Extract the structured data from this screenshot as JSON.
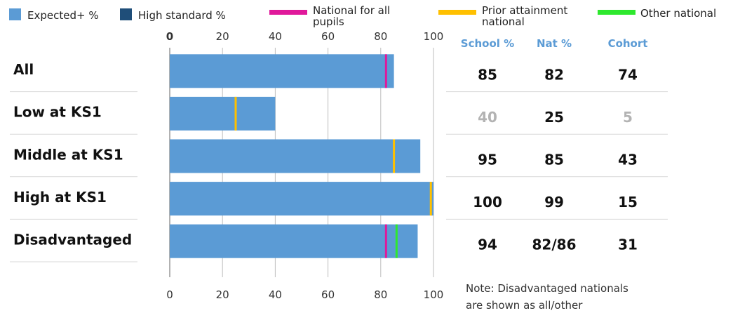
{
  "chart_data": {
    "type": "bar",
    "orientation": "horizontal",
    "xlim": [
      0,
      100
    ],
    "xticks": [
      0,
      20,
      40,
      60,
      80,
      100
    ],
    "grid": true,
    "legend": {
      "placement": "top",
      "entries": [
        {
          "label": "Expected+ %",
          "color": "#5b9bd5",
          "kind": "box"
        },
        {
          "label": "High standard %",
          "color": "#1f4e79",
          "kind": "box"
        },
        {
          "label": "National for all pupils",
          "color": "#e0199b",
          "kind": "line"
        },
        {
          "label": "Prior attainment national",
          "color": "#ffc000",
          "kind": "line"
        },
        {
          "label": "Other national",
          "color": "#2ee82e",
          "kind": "line"
        }
      ]
    },
    "categories": [
      "All",
      "Low at KS1",
      "Middle at KS1",
      "High at KS1",
      "Disadvantaged"
    ],
    "series": [
      {
        "name": "Expected+ %",
        "values": [
          85,
          40,
          95,
          100,
          94
        ],
        "color": "#5b9bd5"
      }
    ],
    "markers": [
      {
        "name": "National for all pupils",
        "color": "#e0199b",
        "values": [
          82,
          null,
          null,
          null,
          82
        ]
      },
      {
        "name": "Prior attainment national",
        "color": "#ffc000",
        "values": [
          null,
          25,
          85,
          99,
          null
        ]
      },
      {
        "name": "Other national",
        "color": "#2ee82e",
        "values": [
          null,
          null,
          null,
          null,
          86
        ]
      }
    ],
    "table": {
      "headers": [
        "School %",
        "Nat %",
        "Cohort"
      ],
      "rows": [
        [
          "85",
          "82",
          "74"
        ],
        [
          "40",
          "25",
          "5"
        ],
        [
          "95",
          "85",
          "43"
        ],
        [
          "100",
          "99",
          "15"
        ],
        [
          "94",
          "82/86",
          "31"
        ]
      ],
      "muted_cells": [
        [
          1,
          0
        ],
        [
          1,
          2
        ]
      ]
    },
    "note_lines": [
      "Note: Disadvantaged nationals",
      "are shown as all/other"
    ]
  }
}
